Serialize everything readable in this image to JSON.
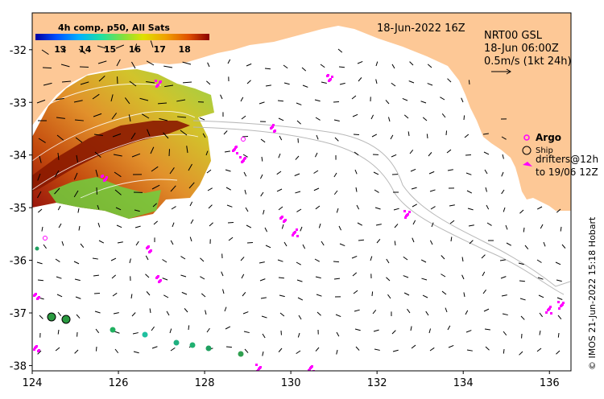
{
  "map": {
    "date_label": "18-Jun-2022 16Z",
    "product": {
      "line1": "NRT00 GSL",
      "line2": "18-Jun 06:00Z",
      "line3": "0.5m/s (1kt 24h)"
    },
    "colorbar": {
      "title": "4h comp, p50, All Sats",
      "ticks": [
        "13",
        "14",
        "15",
        "16",
        "17",
        "18"
      ],
      "range": [
        12,
        19
      ],
      "colors": [
        "#0000a0",
        "#0050ff",
        "#00b0ff",
        "#20e0a0",
        "#80e040",
        "#e0e000",
        "#f0a000",
        "#e05000",
        "#8b0000"
      ]
    },
    "legend": {
      "argo_label": "Argo",
      "ship_label": "Ship",
      "drifters_line1": "drifters@12h",
      "drifters_line2": "to 19/06 12Z"
    },
    "credit": "© IMOS 21-Jun-2022 15:18 Hobart",
    "x_ticks": [
      "124",
      "126",
      "128",
      "130",
      "132",
      "134",
      "136"
    ],
    "y_ticks": [
      "-32",
      "-33",
      "-34",
      "-35",
      "-36",
      "-37",
      "-38"
    ],
    "x_range": [
      124,
      136.5
    ],
    "y_range": [
      -38.1,
      -31.3
    ],
    "colors": {
      "land": "#fdc896",
      "argo": "#ff00ff",
      "drifter": "#ff00ff",
      "contour": "#b8b8b8"
    }
  }
}
